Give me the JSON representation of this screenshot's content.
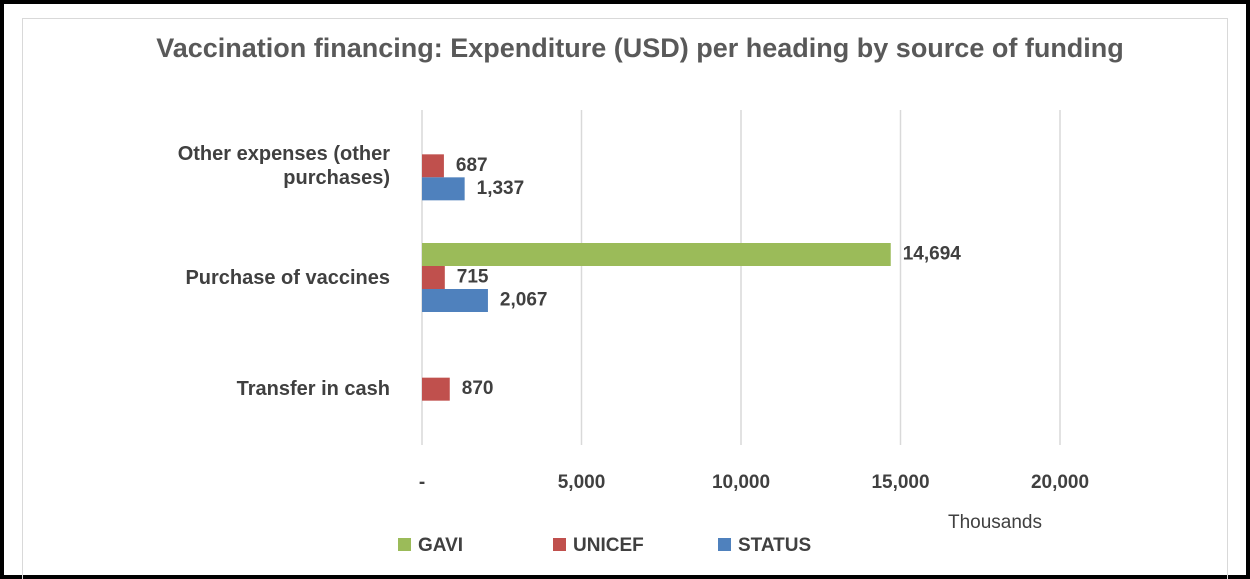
{
  "chart_data": {
    "type": "bar",
    "orientation": "horizontal",
    "title": "Vaccination financing:  Expenditure (USD) per heading by source of funding",
    "categories": [
      "Other expenses (other purchases)",
      "Purchase of vaccines",
      "Transfer in cash"
    ],
    "series": [
      {
        "name": "GAVI",
        "color": "#9bbb59",
        "values": [
          null,
          14694,
          null
        ],
        "value_labels": [
          null,
          "14,694",
          null
        ]
      },
      {
        "name": "UNICEF",
        "color": "#c0504d",
        "values": [
          687,
          715,
          870
        ],
        "value_labels": [
          "687",
          "715",
          "870"
        ]
      },
      {
        "name": "STATUS",
        "color": "#4f81bd",
        "values": [
          1337,
          2067,
          null
        ],
        "value_labels": [
          "1,337",
          "2,067",
          null
        ]
      }
    ],
    "xlim": [
      0,
      20000
    ],
    "xticks": [
      {
        "value": 0,
        "label": "-"
      },
      {
        "value": 5000,
        "label": "5,000"
      },
      {
        "value": 10000,
        "label": "10,000"
      },
      {
        "value": 15000,
        "label": "15,000"
      },
      {
        "value": 20000,
        "label": "20,000"
      }
    ],
    "x_unit_label": "Thousands",
    "grid": true,
    "legend": "bottom"
  }
}
